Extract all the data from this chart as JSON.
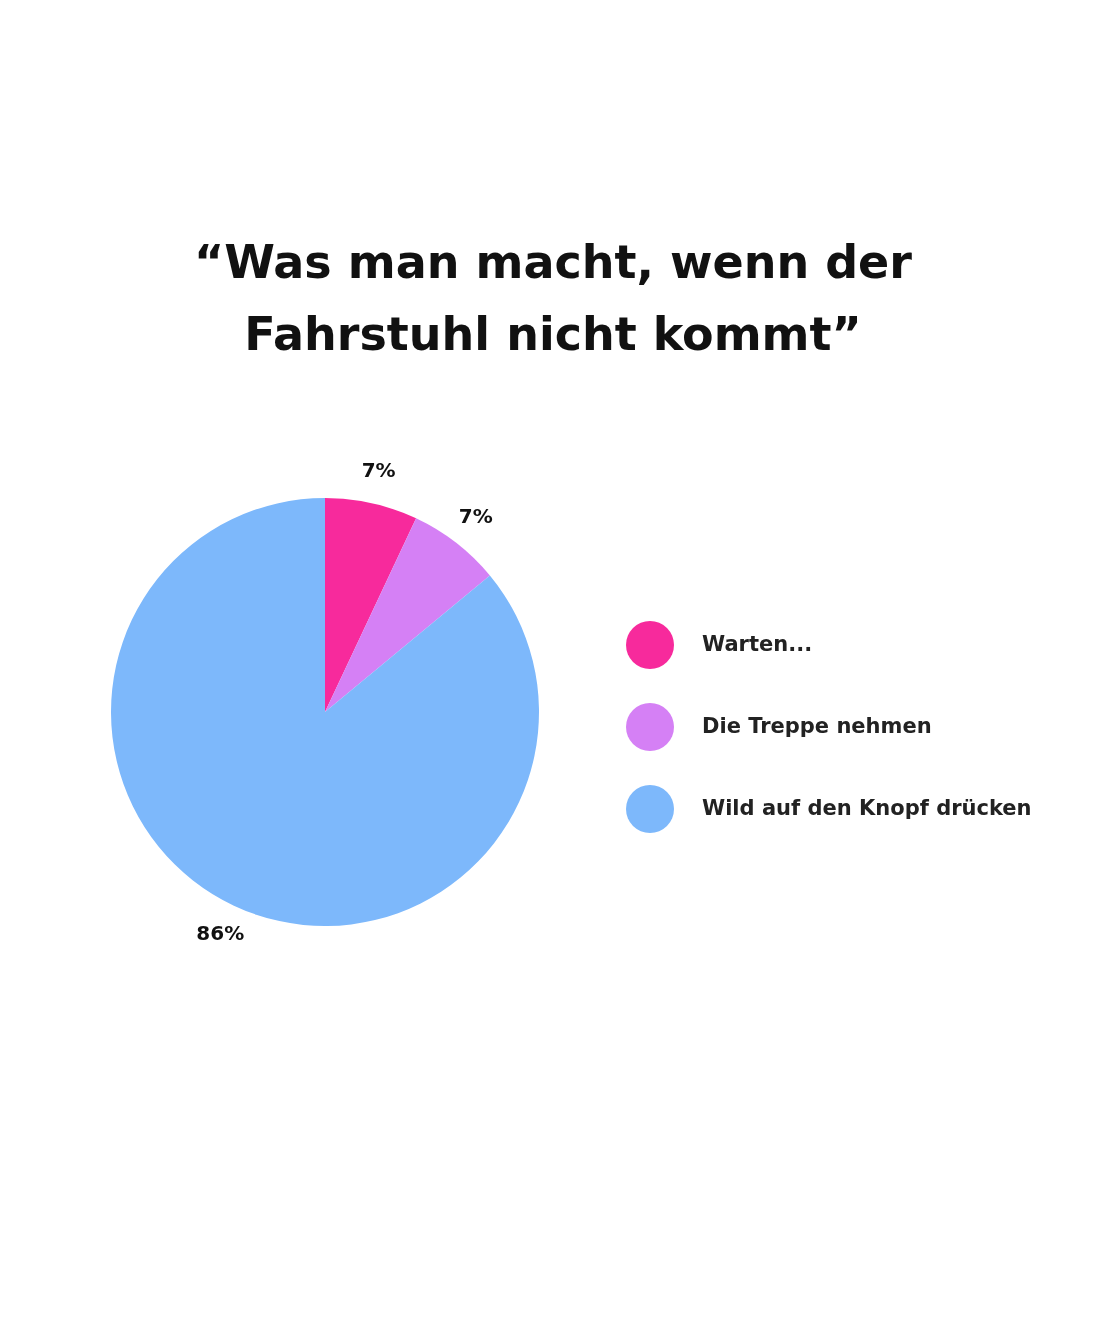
{
  "chart_data": {
    "type": "pie",
    "title": "“Was man macht, wenn der Fahrstuhl nicht kommt”",
    "categories": [
      "Warten...",
      "Die Treppe nehmen",
      "Wild auf den Knopf drücken"
    ],
    "values": [
      7,
      7,
      86
    ],
    "colors": [
      "#f72a9c",
      "#d580f5",
      "#7db8fb"
    ],
    "value_labels": [
      "7%",
      "7%",
      "86%"
    ],
    "legend": "right"
  }
}
